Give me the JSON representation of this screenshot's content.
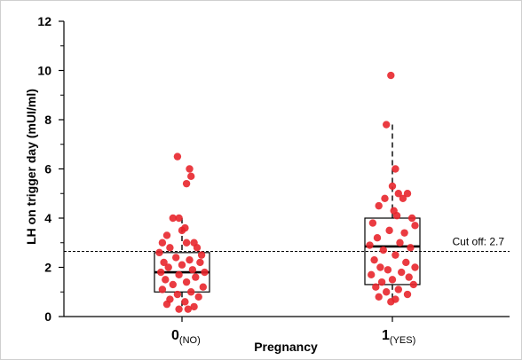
{
  "chart_data": {
    "type": "scatter",
    "title": "",
    "xlabel": "Pregnancy",
    "ylabel": "LH on trigger day (mUI/ml)",
    "ylim": [
      0,
      12
    ],
    "yticks": [
      0,
      2,
      4,
      6,
      8,
      10,
      12
    ],
    "grid": false,
    "categories": [
      {
        "main": "0",
        "sub": "(NO)"
      },
      {
        "main": "1",
        "sub": "(YES)"
      }
    ],
    "cutoff": {
      "value": 2.65,
      "label": "Cut off: 2.7"
    },
    "boxes": [
      {
        "category": "0",
        "whisker_low": 0.3,
        "q1": 1.0,
        "median": 1.8,
        "q3": 2.6,
        "whisker_high": 4.0
      },
      {
        "category": "1",
        "whisker_low": 0.6,
        "q1": 1.3,
        "median": 2.85,
        "q3": 4.0,
        "whisker_high": 7.8
      }
    ],
    "series": [
      {
        "category": "0",
        "points": [
          {
            "x": -0.03,
            "y": 6.5
          },
          {
            "x": 0.05,
            "y": 6.0
          },
          {
            "x": 0.03,
            "y": 5.4
          },
          {
            "x": 0.06,
            "y": 5.7
          },
          {
            "x": -0.06,
            "y": 4.0
          },
          {
            "x": -0.02,
            "y": 4.0
          },
          {
            "x": 0.02,
            "y": 3.6
          },
          {
            "x": 0.0,
            "y": 3.5
          },
          {
            "x": -0.1,
            "y": 3.3
          },
          {
            "x": -0.13,
            "y": 3.0
          },
          {
            "x": 0.03,
            "y": 3.0
          },
          {
            "x": 0.08,
            "y": 3.0
          },
          {
            "x": -0.08,
            "y": 2.8
          },
          {
            "x": 0.1,
            "y": 2.8
          },
          {
            "x": -0.15,
            "y": 2.6
          },
          {
            "x": 0.13,
            "y": 2.5
          },
          {
            "x": -0.04,
            "y": 2.4
          },
          {
            "x": 0.05,
            "y": 2.3
          },
          {
            "x": -0.12,
            "y": 2.2
          },
          {
            "x": 0.12,
            "y": 2.2
          },
          {
            "x": 0.0,
            "y": 2.1
          },
          {
            "x": -0.09,
            "y": 2.0
          },
          {
            "x": 0.07,
            "y": 1.9
          },
          {
            "x": -0.14,
            "y": 1.8
          },
          {
            "x": 0.15,
            "y": 1.8
          },
          {
            "x": -0.02,
            "y": 1.7
          },
          {
            "x": 0.09,
            "y": 1.6
          },
          {
            "x": -0.11,
            "y": 1.5
          },
          {
            "x": 0.03,
            "y": 1.4
          },
          {
            "x": -0.06,
            "y": 1.3
          },
          {
            "x": 0.14,
            "y": 1.2
          },
          {
            "x": -0.13,
            "y": 1.1
          },
          {
            "x": 0.06,
            "y": 1.0
          },
          {
            "x": -0.03,
            "y": 0.9
          },
          {
            "x": 0.11,
            "y": 0.8
          },
          {
            "x": -0.08,
            "y": 0.7
          },
          {
            "x": 0.02,
            "y": 0.6
          },
          {
            "x": -0.1,
            "y": 0.5
          },
          {
            "x": 0.08,
            "y": 0.4
          },
          {
            "x": -0.02,
            "y": 0.3
          },
          {
            "x": 0.04,
            "y": 0.3
          }
        ]
      },
      {
        "category": "1",
        "points": [
          {
            "x": -0.01,
            "y": 9.8
          },
          {
            "x": -0.04,
            "y": 7.8
          },
          {
            "x": 0.02,
            "y": 6.0
          },
          {
            "x": 0.0,
            "y": 5.3
          },
          {
            "x": 0.04,
            "y": 5.0
          },
          {
            "x": 0.1,
            "y": 5.0
          },
          {
            "x": -0.05,
            "y": 4.8
          },
          {
            "x": 0.07,
            "y": 4.8
          },
          {
            "x": -0.09,
            "y": 4.5
          },
          {
            "x": 0.01,
            "y": 4.3
          },
          {
            "x": 0.03,
            "y": 4.1
          },
          {
            "x": 0.13,
            "y": 4.0
          },
          {
            "x": -0.13,
            "y": 3.8
          },
          {
            "x": 0.15,
            "y": 3.7
          },
          {
            "x": -0.02,
            "y": 3.5
          },
          {
            "x": 0.08,
            "y": 3.4
          },
          {
            "x": -0.1,
            "y": 3.2
          },
          {
            "x": 0.05,
            "y": 3.0
          },
          {
            "x": -0.15,
            "y": 2.9
          },
          {
            "x": 0.12,
            "y": 2.8
          },
          {
            "x": -0.06,
            "y": 2.7
          },
          {
            "x": 0.02,
            "y": 2.5
          },
          {
            "x": -0.12,
            "y": 2.3
          },
          {
            "x": 0.09,
            "y": 2.2
          },
          {
            "x": 0.15,
            "y": 2.0
          },
          {
            "x": -0.08,
            "y": 2.0
          },
          {
            "x": -0.03,
            "y": 1.9
          },
          {
            "x": 0.06,
            "y": 1.8
          },
          {
            "x": -0.14,
            "y": 1.7
          },
          {
            "x": 0.11,
            "y": 1.6
          },
          {
            "x": 0.0,
            "y": 1.5
          },
          {
            "x": -0.07,
            "y": 1.4
          },
          {
            "x": 0.14,
            "y": 1.3
          },
          {
            "x": -0.11,
            "y": 1.2
          },
          {
            "x": 0.04,
            "y": 1.1
          },
          {
            "x": -0.04,
            "y": 1.0
          },
          {
            "x": 0.1,
            "y": 0.9
          },
          {
            "x": -0.09,
            "y": 0.8
          },
          {
            "x": 0.02,
            "y": 0.7
          },
          {
            "x": -0.01,
            "y": 0.6
          }
        ]
      }
    ],
    "colors": {
      "points": "#e8262c",
      "box": "#000000",
      "axis": "#000000"
    }
  }
}
